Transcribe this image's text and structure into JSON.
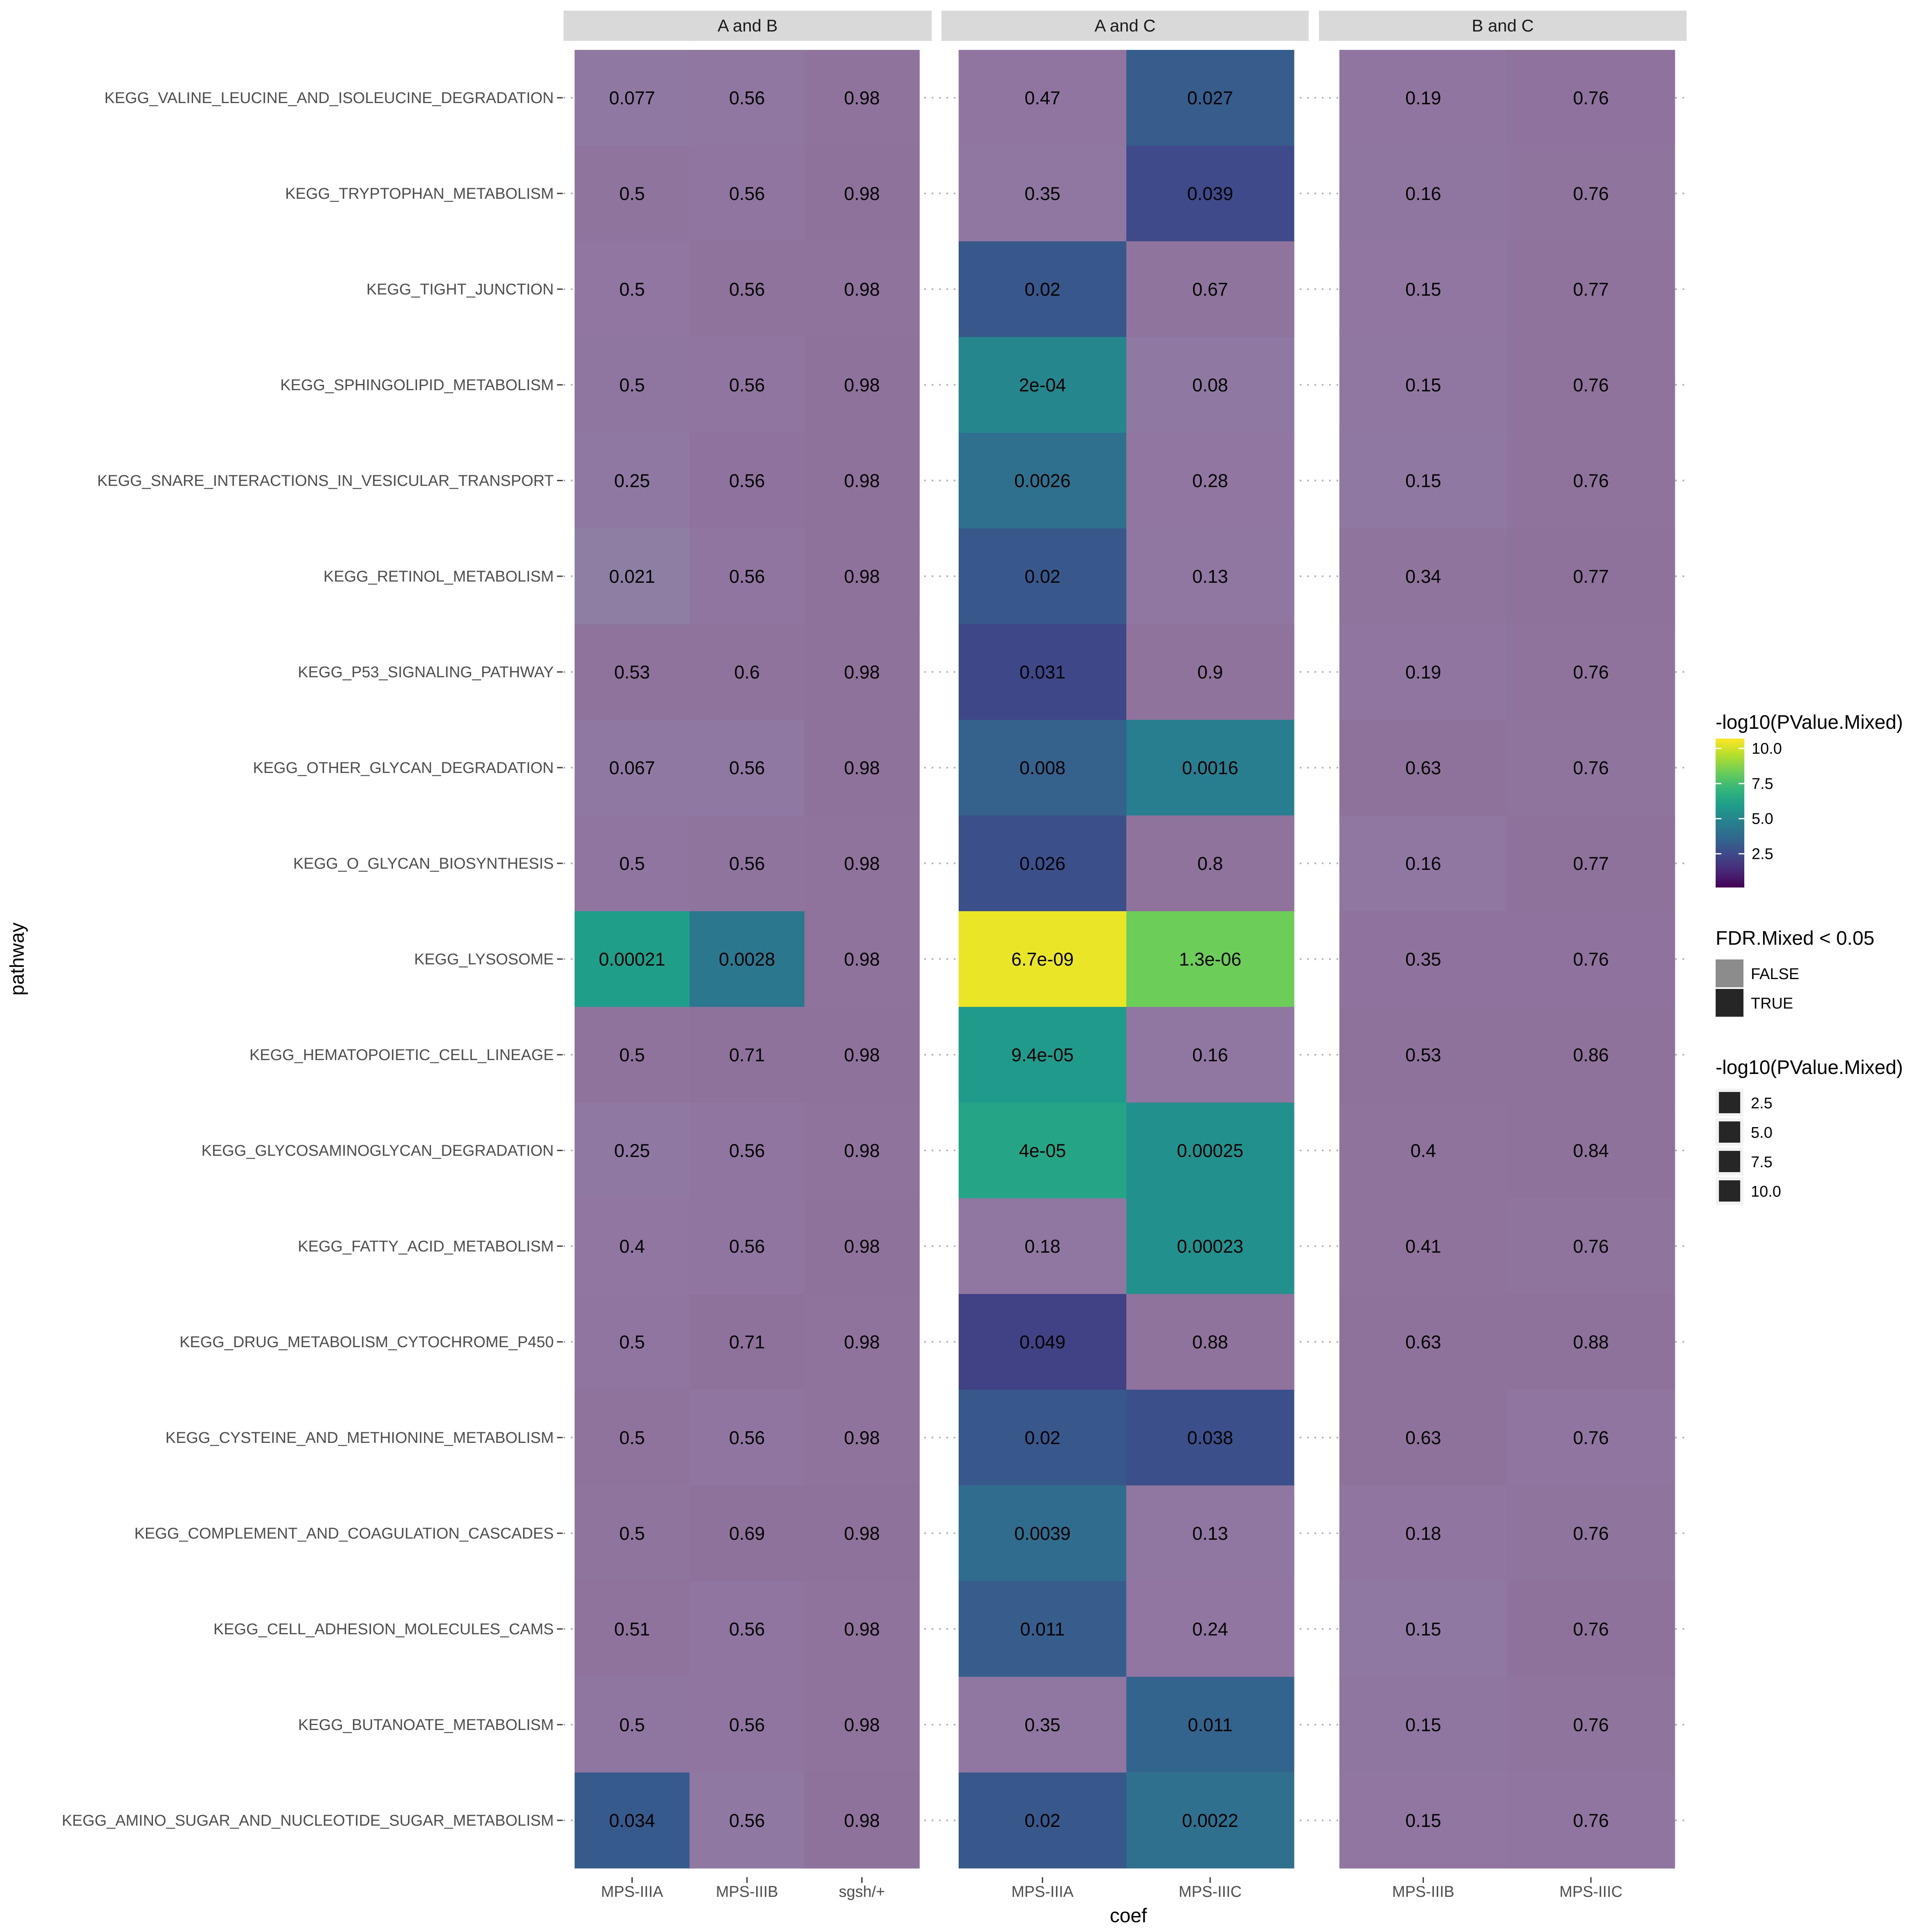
{
  "chart_data": {
    "type": "heatmap",
    "xlabel": "coef",
    "ylabel": "pathway",
    "grid": true,
    "legend_position": "right",
    "pathways": [
      "KEGG_VALINE_LEUCINE_AND_ISOLEUCINE_DEGRADATION",
      "KEGG_TRYPTOPHAN_METABOLISM",
      "KEGG_TIGHT_JUNCTION",
      "KEGG_SPHINGOLIPID_METABOLISM",
      "KEGG_SNARE_INTERACTIONS_IN_VESICULAR_TRANSPORT",
      "KEGG_RETINOL_METABOLISM",
      "KEGG_P53_SIGNALING_PATHWAY",
      "KEGG_OTHER_GLYCAN_DEGRADATION",
      "KEGG_O_GLYCAN_BIOSYNTHESIS",
      "KEGG_LYSOSOME",
      "KEGG_HEMATOPOIETIC_CELL_LINEAGE",
      "KEGG_GLYCOSAMINOGLYCAN_DEGRADATION",
      "KEGG_FATTY_ACID_METABOLISM",
      "KEGG_DRUG_METABOLISM_CYTOCHROME_P450",
      "KEGG_CYSTEINE_AND_METHIONINE_METABOLISM",
      "KEGG_COMPLEMENT_AND_COAGULATION_CASCADES",
      "KEGG_CELL_ADHESION_MOLECULES_CAMS",
      "KEGG_BUTANOATE_METABOLISM",
      "KEGG_AMINO_SUGAR_AND_NUCLEOTIDE_SUGAR_METABOLISM"
    ],
    "panels": [
      {
        "title": "A and B",
        "columns": [
          "MPS-IIIA",
          "MPS-IIIB",
          "sgsh/+"
        ],
        "labels": [
          [
            "0.077",
            "0.56",
            "0.98"
          ],
          [
            "0.5",
            "0.56",
            "0.98"
          ],
          [
            "0.5",
            "0.56",
            "0.98"
          ],
          [
            "0.5",
            "0.56",
            "0.98"
          ],
          [
            "0.25",
            "0.56",
            "0.98"
          ],
          [
            "0.021",
            "0.56",
            "0.98"
          ],
          [
            "0.53",
            "0.6",
            "0.98"
          ],
          [
            "0.067",
            "0.56",
            "0.98"
          ],
          [
            "0.5",
            "0.56",
            "0.98"
          ],
          [
            "0.00021",
            "0.0028",
            "0.98"
          ],
          [
            "0.5",
            "0.71",
            "0.98"
          ],
          [
            "0.25",
            "0.56",
            "0.98"
          ],
          [
            "0.4",
            "0.56",
            "0.98"
          ],
          [
            "0.5",
            "0.71",
            "0.98"
          ],
          [
            "0.5",
            "0.56",
            "0.98"
          ],
          [
            "0.5",
            "0.69",
            "0.98"
          ],
          [
            "0.51",
            "0.56",
            "0.98"
          ],
          [
            "0.5",
            "0.56",
            "0.98"
          ],
          [
            "0.034",
            "0.56",
            "0.98"
          ]
        ],
        "neglog10p": [
          [
            2.0,
            1.5,
            0.3
          ],
          [
            0.6,
            1.0,
            0.2
          ],
          [
            1.2,
            0.4,
            0.3
          ],
          [
            1.1,
            0.8,
            0.1
          ],
          [
            1.9,
            0.5,
            0.2
          ],
          [
            3.5,
            0.8,
            0.2
          ],
          [
            0.3,
            0.3,
            0.2
          ],
          [
            2.1,
            1.8,
            0.1
          ],
          [
            0.9,
            0.7,
            0.3
          ],
          [
            6.0,
            4.3,
            0.3
          ],
          [
            0.3,
            0.2,
            0.2
          ],
          [
            1.8,
            0.9,
            0.4
          ],
          [
            1.2,
            1.0,
            0.2
          ],
          [
            0.9,
            0.2,
            0.3
          ],
          [
            0.3,
            0.8,
            0.3
          ],
          [
            0.7,
            0.2,
            0.1
          ],
          [
            0.3,
            0.9,
            0.3
          ],
          [
            1.1,
            1.0,
            0.3
          ],
          [
            3.1,
            1.6,
            0.2
          ]
        ],
        "fdr_significant": [
          [
            false,
            false,
            false
          ],
          [
            false,
            false,
            false
          ],
          [
            false,
            false,
            false
          ],
          [
            false,
            false,
            false
          ],
          [
            false,
            false,
            false
          ],
          [
            false,
            false,
            false
          ],
          [
            false,
            false,
            false
          ],
          [
            false,
            false,
            false
          ],
          [
            false,
            false,
            false
          ],
          [
            true,
            true,
            false
          ],
          [
            false,
            false,
            false
          ],
          [
            false,
            false,
            false
          ],
          [
            false,
            false,
            false
          ],
          [
            false,
            false,
            false
          ],
          [
            false,
            false,
            false
          ],
          [
            false,
            false,
            false
          ],
          [
            false,
            false,
            false
          ],
          [
            false,
            false,
            false
          ],
          [
            true,
            false,
            false
          ]
        ]
      },
      {
        "title": "A and C",
        "columns": [
          "MPS-IIIA",
          "MPS-IIIC"
        ],
        "labels": [
          [
            "0.47",
            "0.027"
          ],
          [
            "0.35",
            "0.039"
          ],
          [
            "0.02",
            "0.67"
          ],
          [
            "2e-04",
            "0.08"
          ],
          [
            "0.0026",
            "0.28"
          ],
          [
            "0.02",
            "0.13"
          ],
          [
            "0.031",
            "0.9"
          ],
          [
            "0.008",
            "0.0016"
          ],
          [
            "0.026",
            "0.8"
          ],
          [
            "6.7e-09",
            "1.3e-06"
          ],
          [
            "9.4e-05",
            "0.16"
          ],
          [
            "4e-05",
            "0.00025"
          ],
          [
            "0.18",
            "0.00023"
          ],
          [
            "0.049",
            "0.88"
          ],
          [
            "0.02",
            "0.038"
          ],
          [
            "0.0039",
            "0.13"
          ],
          [
            "0.011",
            "0.24"
          ],
          [
            "0.35",
            "0.011"
          ],
          [
            "0.02",
            "0.0022"
          ]
        ],
        "neglog10p": [
          [
            1.0,
            3.2
          ],
          [
            1.3,
            2.5
          ],
          [
            3.0,
            0.7
          ],
          [
            5.0,
            1.9
          ],
          [
            4.0,
            1.2
          ],
          [
            3.0,
            1.5
          ],
          [
            2.4,
            0.3
          ],
          [
            3.4,
            4.6
          ],
          [
            2.7,
            0.4
          ],
          [
            10.4,
            8.3
          ],
          [
            5.8,
            1.4
          ],
          [
            6.3,
            5.4
          ],
          [
            1.3,
            5.4
          ],
          [
            2.2,
            0.4
          ],
          [
            3.0,
            2.7
          ],
          [
            3.8,
            1.5
          ],
          [
            3.2,
            1.2
          ],
          [
            1.3,
            3.5
          ],
          [
            3.0,
            4.0
          ]
        ],
        "fdr_significant": [
          [
            false,
            true
          ],
          [
            false,
            true
          ],
          [
            true,
            false
          ],
          [
            true,
            false
          ],
          [
            true,
            false
          ],
          [
            true,
            false
          ],
          [
            true,
            false
          ],
          [
            true,
            true
          ],
          [
            true,
            false
          ],
          [
            true,
            true
          ],
          [
            true,
            false
          ],
          [
            true,
            true
          ],
          [
            false,
            true
          ],
          [
            true,
            false
          ],
          [
            true,
            true
          ],
          [
            true,
            false
          ],
          [
            true,
            false
          ],
          [
            false,
            true
          ],
          [
            true,
            true
          ]
        ]
      },
      {
        "title": "B and C",
        "columns": [
          "MPS-IIIB",
          "MPS-IIIC"
        ],
        "labels": [
          [
            "0.19",
            "0.76"
          ],
          [
            "0.16",
            "0.76"
          ],
          [
            "0.15",
            "0.77"
          ],
          [
            "0.15",
            "0.76"
          ],
          [
            "0.15",
            "0.76"
          ],
          [
            "0.34",
            "0.77"
          ],
          [
            "0.19",
            "0.76"
          ],
          [
            "0.63",
            "0.76"
          ],
          [
            "0.16",
            "0.77"
          ],
          [
            "0.35",
            "0.76"
          ],
          [
            "0.53",
            "0.86"
          ],
          [
            "0.4",
            "0.84"
          ],
          [
            "0.41",
            "0.76"
          ],
          [
            "0.63",
            "0.88"
          ],
          [
            "0.63",
            "0.76"
          ],
          [
            "0.18",
            "0.76"
          ],
          [
            "0.15",
            "0.76"
          ],
          [
            "0.15",
            "0.76"
          ],
          [
            "0.15",
            "0.76"
          ]
        ],
        "neglog10p": [
          [
            0.9,
            0.5
          ],
          [
            1.1,
            0.7
          ],
          [
            1.2,
            0.3
          ],
          [
            1.5,
            0.4
          ],
          [
            1.6,
            0.4
          ],
          [
            0.6,
            0.2
          ],
          [
            1.0,
            0.4
          ],
          [
            0.2,
            0.6
          ],
          [
            1.3,
            0.2
          ],
          [
            0.5,
            0.5
          ],
          [
            0.2,
            0.2
          ],
          [
            0.4,
            0.2
          ],
          [
            0.4,
            0.6
          ],
          [
            0.2,
            0.2
          ],
          [
            0.2,
            0.9
          ],
          [
            0.9,
            0.7
          ],
          [
            2.0,
            0.2
          ],
          [
            1.1,
            0.7
          ],
          [
            1.2,
            0.8
          ]
        ],
        "fdr_significant": [
          [
            false,
            false
          ],
          [
            false,
            false
          ],
          [
            false,
            false
          ],
          [
            false,
            false
          ],
          [
            false,
            false
          ],
          [
            false,
            false
          ],
          [
            false,
            false
          ],
          [
            false,
            false
          ],
          [
            false,
            false
          ],
          [
            false,
            false
          ],
          [
            false,
            false
          ],
          [
            false,
            false
          ],
          [
            false,
            false
          ],
          [
            false,
            false
          ],
          [
            false,
            false
          ],
          [
            false,
            false
          ],
          [
            false,
            false
          ],
          [
            false,
            false
          ],
          [
            false,
            false
          ]
        ]
      }
    ],
    "color_scale": {
      "name": "viridis",
      "title": "-log10(PValue.Mixed)",
      "ticks": [
        "2.5",
        "5.0",
        "7.5",
        "10.0"
      ],
      "tick_values": [
        2.5,
        5.0,
        7.5,
        10.0
      ],
      "range": [
        0.1,
        10.7
      ],
      "stops": [
        "#440154",
        "#482878",
        "#3e4989",
        "#31688e",
        "#26828e",
        "#1f9e89",
        "#35b779",
        "#6ece58",
        "#b5de2b",
        "#fde725"
      ]
    },
    "alpha_legend": {
      "title": "FDR.Mixed < 0.05",
      "entries": [
        "FALSE",
        "TRUE"
      ],
      "colors": [
        "#8c8c8c",
        "#262626"
      ]
    },
    "size_legend": {
      "title": "-log10(PValue.Mixed)",
      "entries": [
        "2.5",
        "5.0",
        "7.5",
        "10.0"
      ],
      "color": "#262626"
    },
    "false_overlay_color": "#9a82a6",
    "strip_color": "#d9d9d9"
  }
}
